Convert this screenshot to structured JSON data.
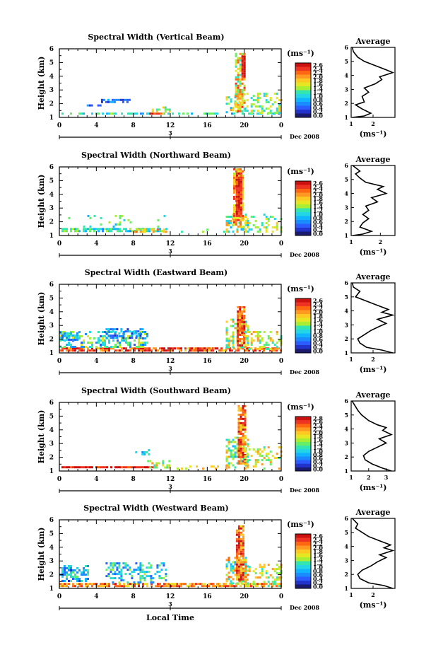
{
  "common": {
    "ylabel": "Height (km)",
    "ytick_labels": [
      "1",
      "2",
      "3",
      "4",
      "5",
      "6"
    ],
    "xtick_labels": [
      "0",
      "4",
      "8",
      "12",
      "16",
      "20",
      "0"
    ],
    "date_tick": "3",
    "month_label": "Dec 2008",
    "colorbar_unit": "(ms⁻¹)",
    "average_title": "Average",
    "average_unit": "(ms⁻¹)",
    "xlabel_bottom": "Local Time"
  },
  "colormap": [
    "#1a1a6e",
    "#2233cc",
    "#2a5cff",
    "#1a8cff",
    "#11b4ff",
    "#22d6e6",
    "#33e6b0",
    "#66ee66",
    "#aaee33",
    "#e6e622",
    "#ffc822",
    "#ff9922",
    "#ff6611",
    "#ee3322",
    "#cc1111"
  ],
  "chart_data": [
    {
      "type": "heatmap",
      "title": "Spectral Width (Vertical Beam)",
      "x_range_hours": [
        0,
        24
      ],
      "ylim_km": [
        1,
        6
      ],
      "colorbar_labels": [
        "2.6",
        "2.4",
        "2.2",
        "2.0",
        "1.8",
        "1.6",
        "1.4",
        "1.2",
        "1.0",
        "0.8",
        "0.6",
        "0.4",
        "0.2",
        "0.0"
      ],
      "patches": [
        {
          "x0": 0.0,
          "x1": 24.0,
          "y0": 1.2,
          "y1": 1.35,
          "density": 0.55,
          "c0": 0.25,
          "c1": 0.55
        },
        {
          "x0": 4.5,
          "x1": 7.5,
          "y0": 2.1,
          "y1": 2.35,
          "density": 0.6,
          "c0": 0.1,
          "c1": 0.3
        },
        {
          "x0": 2.5,
          "x1": 4.5,
          "y0": 1.8,
          "y1": 1.95,
          "density": 0.5,
          "c0": 0.1,
          "c1": 0.3
        },
        {
          "x0": 9.5,
          "x1": 11.5,
          "y0": 1.2,
          "y1": 1.35,
          "density": 0.8,
          "c0": 0.7,
          "c1": 0.95
        },
        {
          "x0": 10.0,
          "x1": 12.0,
          "y0": 1.4,
          "y1": 1.8,
          "density": 0.35,
          "c0": 0.4,
          "c1": 0.75
        },
        {
          "x0": 18.0,
          "x1": 19.5,
          "y0": 1.3,
          "y1": 3.0,
          "density": 0.45,
          "c0": 0.3,
          "c1": 0.8
        },
        {
          "x0": 19.0,
          "x1": 20.0,
          "y0": 1.5,
          "y1": 5.7,
          "density": 0.7,
          "c0": 0.4,
          "c1": 0.9
        },
        {
          "x0": 19.7,
          "x1": 20.1,
          "y0": 4.0,
          "y1": 5.5,
          "density": 0.95,
          "c0": 0.9,
          "c1": 1.0
        },
        {
          "x0": 20.0,
          "x1": 24.0,
          "y0": 1.3,
          "y1": 2.8,
          "density": 0.3,
          "c0": 0.35,
          "c1": 0.75
        }
      ],
      "average": {
        "xlim": [
          1,
          3
        ],
        "xticks": [
          "1",
          "2"
        ],
        "profile": [
          [
            1.05,
            1.0
          ],
          [
            1.6,
            1.1
          ],
          [
            1.9,
            1.3
          ],
          [
            1.5,
            1.6
          ],
          [
            1.2,
            1.9
          ],
          [
            1.6,
            2.1
          ],
          [
            1.5,
            2.5
          ],
          [
            1.8,
            2.8
          ],
          [
            1.6,
            3.1
          ],
          [
            2.1,
            3.4
          ],
          [
            2.4,
            3.7
          ],
          [
            2.3,
            3.9
          ],
          [
            2.9,
            4.2
          ],
          [
            2.6,
            4.4
          ],
          [
            2.1,
            4.7
          ],
          [
            1.6,
            5.0
          ],
          [
            1.3,
            5.3
          ],
          [
            1.1,
            5.7
          ],
          [
            1.05,
            6.0
          ]
        ]
      }
    },
    {
      "type": "heatmap",
      "title": "Spectral Width (Northward Beam)",
      "x_range_hours": [
        0,
        24
      ],
      "ylim_km": [
        1,
        6
      ],
      "colorbar_labels": [
        "2.6",
        "2.4",
        "2.2",
        "2.0",
        "1.8",
        "1.6",
        "1.4",
        "1.2",
        "1.0",
        "0.8",
        "0.6",
        "0.4",
        "0.2",
        "0.0"
      ],
      "patches": [
        {
          "x0": 0.0,
          "x1": 11.5,
          "y0": 1.35,
          "y1": 1.55,
          "density": 0.7,
          "c0": 0.25,
          "c1": 0.6
        },
        {
          "x0": 0.5,
          "x1": 12.0,
          "y0": 1.6,
          "y1": 2.5,
          "density": 0.06,
          "c0": 0.3,
          "c1": 0.6
        },
        {
          "x0": 8.0,
          "x1": 11.5,
          "y0": 1.3,
          "y1": 1.5,
          "density": 0.6,
          "c0": 0.6,
          "c1": 0.85
        },
        {
          "x0": 12.0,
          "x1": 18.0,
          "y0": 1.3,
          "y1": 1.5,
          "density": 0.12,
          "c0": 0.4,
          "c1": 0.6
        },
        {
          "x0": 18.0,
          "x1": 20.5,
          "y0": 1.3,
          "y1": 2.6,
          "density": 0.4,
          "c0": 0.3,
          "c1": 0.8
        },
        {
          "x0": 18.8,
          "x1": 19.9,
          "y0": 1.6,
          "y1": 5.9,
          "density": 0.8,
          "c0": 0.55,
          "c1": 0.9
        },
        {
          "x0": 19.1,
          "x1": 19.6,
          "y0": 2.5,
          "y1": 5.6,
          "density": 0.95,
          "c0": 0.85,
          "c1": 1.0
        },
        {
          "x0": 20.0,
          "x1": 24.0,
          "y0": 1.3,
          "y1": 2.6,
          "density": 0.25,
          "c0": 0.35,
          "c1": 0.7
        }
      ],
      "average": {
        "xlim": [
          1,
          2.5
        ],
        "xticks": [
          "1",
          "2"
        ],
        "profile": [
          [
            1.05,
            1.0
          ],
          [
            1.4,
            1.1
          ],
          [
            1.7,
            1.3
          ],
          [
            1.3,
            1.6
          ],
          [
            1.4,
            1.9
          ],
          [
            1.6,
            2.2
          ],
          [
            1.4,
            2.5
          ],
          [
            1.6,
            2.8
          ],
          [
            1.5,
            3.1
          ],
          [
            1.9,
            3.4
          ],
          [
            1.7,
            3.7
          ],
          [
            2.2,
            4.0
          ],
          [
            1.9,
            4.3
          ],
          [
            2.1,
            4.5
          ],
          [
            1.5,
            4.8
          ],
          [
            1.3,
            5.1
          ],
          [
            1.15,
            5.4
          ],
          [
            1.3,
            5.6
          ],
          [
            1.05,
            6.0
          ]
        ]
      }
    },
    {
      "type": "heatmap",
      "title": "Spectral Width (Eastward Beam)",
      "x_range_hours": [
        0,
        24
      ],
      "ylim_km": [
        1,
        6
      ],
      "colorbar_labels": [
        "2.6",
        "2.4",
        "2.2",
        "2.0",
        "1.8",
        "1.6",
        "1.4",
        "1.2",
        "1.0",
        "0.8",
        "0.6",
        "0.4",
        "0.2",
        "0.0"
      ],
      "patches": [
        {
          "x0": 0.0,
          "x1": 24.0,
          "y0": 1.15,
          "y1": 1.4,
          "density": 0.8,
          "c0": 0.7,
          "c1": 1.0
        },
        {
          "x0": 0.0,
          "x1": 9.5,
          "y0": 1.4,
          "y1": 2.6,
          "density": 0.45,
          "c0": 0.15,
          "c1": 0.65
        },
        {
          "x0": 0.0,
          "x1": 2.0,
          "y0": 2.0,
          "y1": 2.5,
          "density": 0.75,
          "c0": 0.15,
          "c1": 0.45
        },
        {
          "x0": 5.0,
          "x1": 9.0,
          "y0": 2.1,
          "y1": 2.8,
          "density": 0.5,
          "c0": 0.1,
          "c1": 0.4
        },
        {
          "x0": 12.0,
          "x1": 18.0,
          "y0": 1.2,
          "y1": 1.4,
          "density": 0.25,
          "c0": 0.6,
          "c1": 0.9
        },
        {
          "x0": 18.0,
          "x1": 20.5,
          "y0": 1.4,
          "y1": 3.5,
          "density": 0.5,
          "c0": 0.3,
          "c1": 0.8
        },
        {
          "x0": 19.2,
          "x1": 19.9,
          "y0": 1.5,
          "y1": 4.4,
          "density": 0.9,
          "c0": 0.7,
          "c1": 1.0
        },
        {
          "x0": 20.0,
          "x1": 24.0,
          "y0": 1.3,
          "y1": 2.6,
          "density": 0.3,
          "c0": 0.4,
          "c1": 0.8
        }
      ],
      "average": {
        "xlim": [
          1,
          3
        ],
        "xticks": [
          "1",
          "2"
        ],
        "profile": [
          [
            2.9,
            1.0
          ],
          [
            2.4,
            1.2
          ],
          [
            1.7,
            1.4
          ],
          [
            1.4,
            1.7
          ],
          [
            1.3,
            2.0
          ],
          [
            1.6,
            2.3
          ],
          [
            1.9,
            2.6
          ],
          [
            2.3,
            2.9
          ],
          [
            2.6,
            3.1
          ],
          [
            2.2,
            3.4
          ],
          [
            2.9,
            3.7
          ],
          [
            2.4,
            3.9
          ],
          [
            2.7,
            4.1
          ],
          [
            2.2,
            4.4
          ],
          [
            1.7,
            4.7
          ],
          [
            1.2,
            5.0
          ],
          [
            1.4,
            5.4
          ],
          [
            1.1,
            5.7
          ],
          [
            1.05,
            6.0
          ]
        ]
      }
    },
    {
      "type": "heatmap",
      "title": "Spectral Width (Southward Beam)",
      "x_range_hours": [
        0,
        24
      ],
      "ylim_km": [
        1,
        6
      ],
      "colorbar_labels": [
        "2.8",
        "2.6",
        "2.4",
        "2.2",
        "2.0",
        "1.8",
        "1.6",
        "1.4",
        "1.2",
        "1.0",
        "0.8",
        "0.6",
        "0.4",
        "0.2",
        "0.0"
      ],
      "patches": [
        {
          "x0": 0.0,
          "x1": 10.5,
          "y0": 1.2,
          "y1": 1.35,
          "density": 0.85,
          "c0": 0.85,
          "c1": 1.0
        },
        {
          "x0": 8.2,
          "x1": 9.8,
          "y0": 2.2,
          "y1": 2.6,
          "density": 0.6,
          "c0": 0.15,
          "c1": 0.45
        },
        {
          "x0": 9.5,
          "x1": 12.0,
          "y0": 1.3,
          "y1": 1.8,
          "density": 0.3,
          "c0": 0.4,
          "c1": 0.8
        },
        {
          "x0": 12.0,
          "x1": 18.0,
          "y0": 1.2,
          "y1": 1.4,
          "density": 0.2,
          "c0": 0.5,
          "c1": 0.8
        },
        {
          "x0": 18.0,
          "x1": 20.5,
          "y0": 1.3,
          "y1": 3.5,
          "density": 0.45,
          "c0": 0.3,
          "c1": 0.8
        },
        {
          "x0": 19.3,
          "x1": 20.1,
          "y0": 1.6,
          "y1": 5.8,
          "density": 0.85,
          "c0": 0.65,
          "c1": 1.0
        },
        {
          "x0": 20.0,
          "x1": 24.0,
          "y0": 1.2,
          "y1": 2.8,
          "density": 0.3,
          "c0": 0.4,
          "c1": 0.8
        }
      ],
      "average": {
        "xlim": [
          1,
          3.5
        ],
        "xticks": [
          "1",
          "2",
          "3"
        ],
        "profile": [
          [
            3.3,
            1.0
          ],
          [
            2.8,
            1.2
          ],
          [
            2.2,
            1.5
          ],
          [
            1.8,
            1.8
          ],
          [
            1.7,
            2.1
          ],
          [
            2.0,
            2.4
          ],
          [
            2.5,
            2.7
          ],
          [
            3.0,
            3.0
          ],
          [
            2.6,
            3.3
          ],
          [
            3.3,
            3.6
          ],
          [
            2.8,
            3.9
          ],
          [
            3.0,
            4.1
          ],
          [
            2.5,
            4.3
          ],
          [
            2.0,
            4.6
          ],
          [
            1.6,
            5.0
          ],
          [
            1.4,
            5.3
          ],
          [
            1.2,
            5.7
          ],
          [
            1.05,
            6.0
          ]
        ]
      }
    },
    {
      "type": "heatmap",
      "title": "Spectral Width (Westward Beam)",
      "x_range_hours": [
        0,
        24
      ],
      "ylim_km": [
        1,
        6
      ],
      "colorbar_labels": [
        "2.6",
        "2.4",
        "2.2",
        "2.0",
        "1.8",
        "1.6",
        "1.4",
        "1.2",
        "1.0",
        "0.8",
        "0.6",
        "0.4",
        "0.2",
        "0.0"
      ],
      "patches": [
        {
          "x0": 0.0,
          "x1": 24.0,
          "y0": 1.15,
          "y1": 1.4,
          "density": 0.7,
          "c0": 0.65,
          "c1": 0.95
        },
        {
          "x0": 0.0,
          "x1": 3.0,
          "y0": 1.5,
          "y1": 2.7,
          "density": 0.5,
          "c0": 0.1,
          "c1": 0.5
        },
        {
          "x0": 5.0,
          "x1": 11.5,
          "y0": 1.5,
          "y1": 2.9,
          "density": 0.4,
          "c0": 0.15,
          "c1": 0.55
        },
        {
          "x0": 11.5,
          "x1": 18.0,
          "y0": 1.2,
          "y1": 1.4,
          "density": 0.25,
          "c0": 0.6,
          "c1": 0.85
        },
        {
          "x0": 18.0,
          "x1": 20.5,
          "y0": 1.3,
          "y1": 3.3,
          "density": 0.45,
          "c0": 0.3,
          "c1": 0.85
        },
        {
          "x0": 19.1,
          "x1": 19.9,
          "y0": 1.6,
          "y1": 5.6,
          "density": 0.85,
          "c0": 0.65,
          "c1": 1.0
        },
        {
          "x0": 20.0,
          "x1": 24.0,
          "y0": 1.2,
          "y1": 2.8,
          "density": 0.3,
          "c0": 0.4,
          "c1": 0.8
        }
      ],
      "average": {
        "xlim": [
          1,
          3
        ],
        "xticks": [
          "1",
          "2"
        ],
        "profile": [
          [
            2.9,
            1.0
          ],
          [
            2.5,
            1.2
          ],
          [
            1.8,
            1.4
          ],
          [
            1.4,
            1.7
          ],
          [
            1.3,
            2.0
          ],
          [
            1.5,
            2.3
          ],
          [
            1.9,
            2.6
          ],
          [
            2.2,
            2.9
          ],
          [
            2.6,
            3.2
          ],
          [
            2.3,
            3.4
          ],
          [
            2.9,
            3.7
          ],
          [
            2.5,
            3.9
          ],
          [
            2.8,
            4.1
          ],
          [
            2.3,
            4.4
          ],
          [
            1.8,
            4.7
          ],
          [
            1.5,
            5.0
          ],
          [
            1.2,
            5.3
          ],
          [
            1.3,
            5.6
          ],
          [
            1.05,
            6.0
          ]
        ]
      }
    }
  ]
}
